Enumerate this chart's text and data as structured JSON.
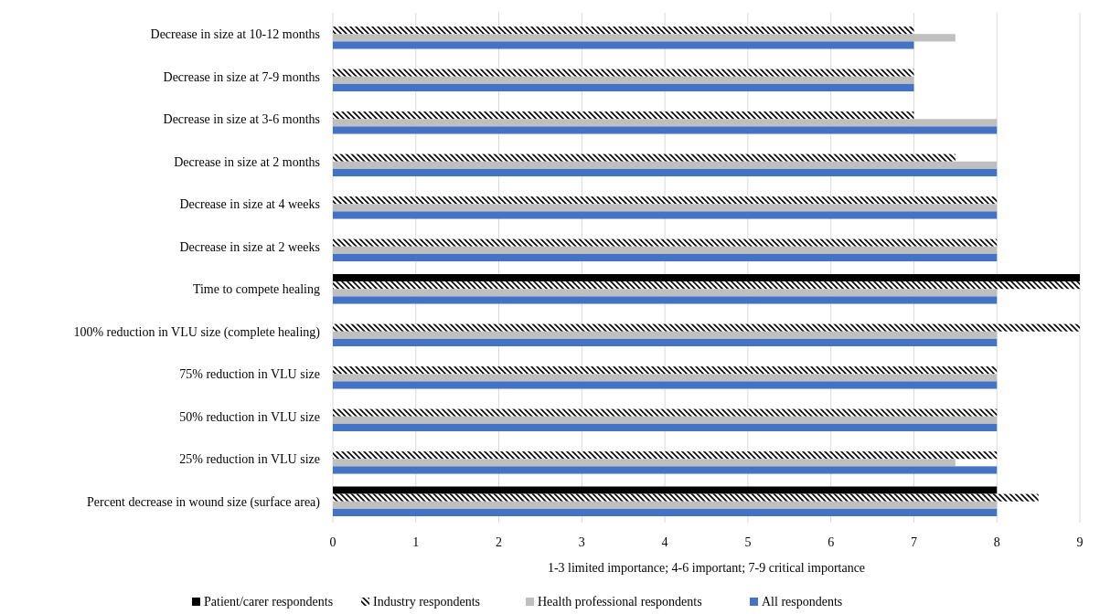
{
  "chart_data": {
    "type": "bar",
    "orientation": "horizontal",
    "xlabel": "1-3 limited importance; 4-6 important; 7-9 critical importance",
    "categories": [
      "Decrease in size at 10-12 months",
      "Decrease in size at 7-9 months",
      "Decrease in size at 3-6 months",
      "Decrease in size at 2 months",
      "Decrease in size at 4 weeks",
      "Decrease in size at 2 weeks",
      "Time to compete healing",
      "100% reduction in VLU size (complete healing)",
      "75% reduction in VLU size",
      "50% reduction in VLU size",
      "25% reduction in VLU size",
      "Percent decrease in wound size (surface area)"
    ],
    "series": [
      {
        "name": "Patient/carer respondents",
        "color": "#000000",
        "values": [
          null,
          null,
          null,
          null,
          null,
          null,
          9,
          null,
          null,
          null,
          null,
          8
        ]
      },
      {
        "name": "Industry respondents",
        "color": "#000000",
        "values": [
          7,
          7,
          7,
          7.5,
          8,
          8,
          9,
          9,
          8,
          8,
          8,
          8.5
        ]
      },
      {
        "name": "Health professional respondents",
        "color": "#bfbfbf",
        "values": [
          7.5,
          7,
          8,
          8,
          8,
          8,
          8,
          8,
          8,
          8,
          7.5,
          8
        ]
      },
      {
        "name": "All respondents",
        "color": "#4472c4",
        "values": [
          7,
          7,
          8,
          8,
          8,
          8,
          8,
          8,
          8,
          8,
          8,
          8
        ]
      }
    ],
    "xlim": [
      0,
      9
    ],
    "xticks": [
      0,
      1,
      2,
      3,
      4,
      5,
      6,
      7,
      8,
      9
    ],
    "grid": "x",
    "legend": "bottom"
  }
}
